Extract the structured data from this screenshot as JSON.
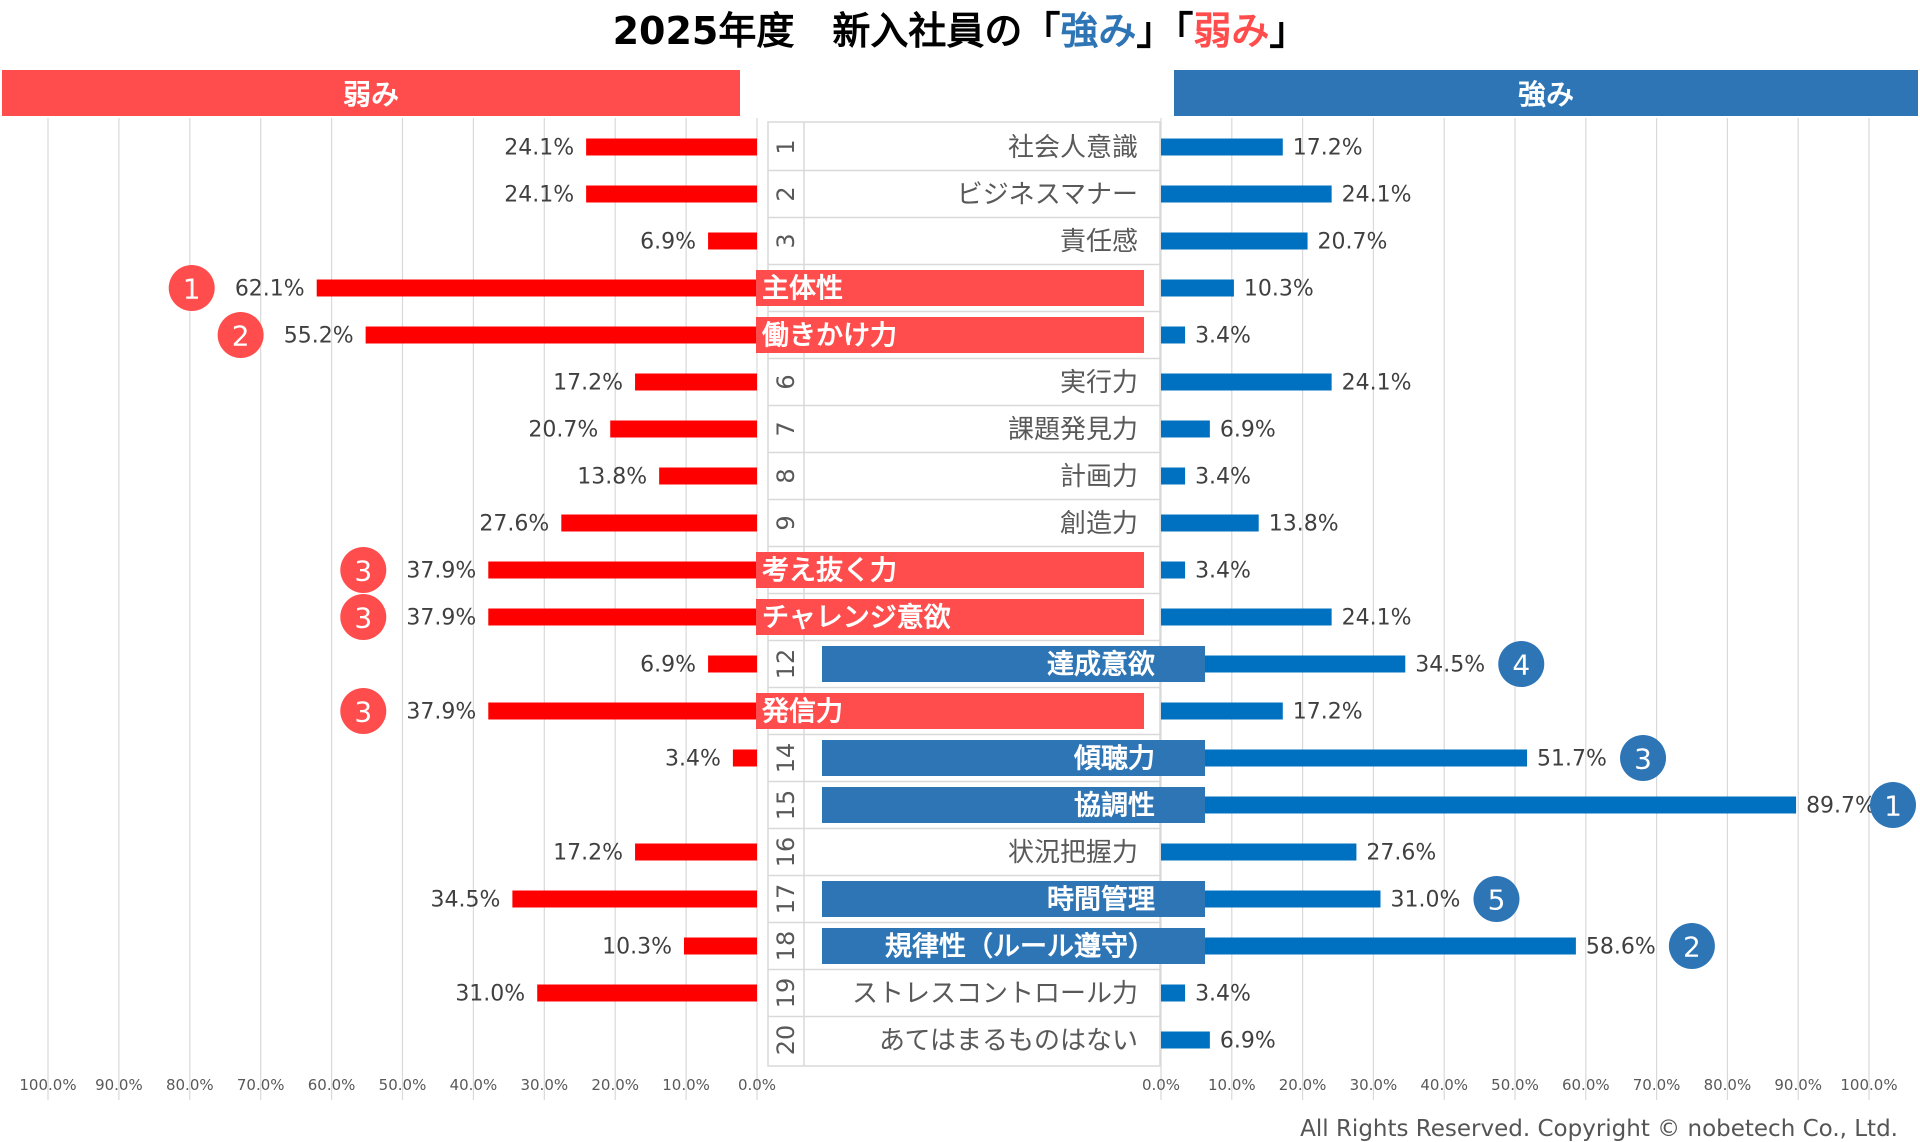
{
  "title": {
    "prefix": "2025年度　新入社員の",
    "open1": "「",
    "strong": "強み",
    "close1": "」",
    "open2": "「",
    "weak": "弱み",
    "close2": "」"
  },
  "headers": {
    "left": "弱み",
    "right": "強み"
  },
  "copyright": "All Rights Reserved. Copyright © nobetech Co., Ltd.",
  "colors": {
    "weak_bar": "#ff0000",
    "weak_header": "#ff4d4d",
    "strong_bar": "#0070c0",
    "strong_header": "#2e75b6",
    "title_strong": "#2e75b6",
    "title_weak": "#ff4d4d"
  },
  "chart_data": {
    "type": "bar",
    "orientation": "horizontal-butterfly",
    "categories": [
      "社会人意識",
      "ビジネスマナー",
      "責任感",
      "主体性",
      "働きかけ力",
      "実行力",
      "課題発見力",
      "計画力",
      "創造力",
      "考え抜く力",
      "チャレンジ意欲",
      "達成意欲",
      "発信力",
      "傾聴力",
      "協調性",
      "状況把握力",
      "時間管理",
      "規律性（ルール遵守）",
      "ストレスコントロール力",
      "あてはまるものはない"
    ],
    "row_numbers": [
      "1",
      "2",
      "3",
      "",
      "",
      "6",
      "7",
      "8",
      "9",
      "",
      "",
      "12",
      "",
      "14",
      "15",
      "16",
      "17",
      "18",
      "19",
      "20"
    ],
    "series": [
      {
        "name": "弱み",
        "values": [
          24.1,
          24.1,
          6.9,
          62.1,
          55.2,
          17.2,
          20.7,
          13.8,
          27.6,
          37.9,
          37.9,
          6.9,
          37.9,
          3.4,
          0,
          17.2,
          34.5,
          10.3,
          31.0,
          0
        ],
        "labels": [
          "24.1%",
          "24.1%",
          "6.9%",
          "62.1%",
          "55.2%",
          "17.2%",
          "20.7%",
          "13.8%",
          "27.6%",
          "37.9%",
          "37.9%",
          "6.9%",
          "37.9%",
          "3.4%",
          "",
          "17.2%",
          "34.5%",
          "10.3%",
          "31.0%",
          ""
        ]
      },
      {
        "name": "強み",
        "values": [
          17.2,
          24.1,
          20.7,
          10.3,
          3.4,
          24.1,
          6.9,
          3.4,
          13.8,
          3.4,
          24.1,
          34.5,
          17.2,
          51.7,
          89.7,
          27.6,
          31.0,
          58.6,
          3.4,
          6.9
        ],
        "labels": [
          "17.2%",
          "24.1%",
          "20.7%",
          "10.3%",
          "3.4%",
          "24.1%",
          "6.9%",
          "3.4%",
          "13.8%",
          "3.4%",
          "24.1%",
          "34.5%",
          "17.2%",
          "51.7%",
          "89.7%",
          "27.6%",
          "31.0%",
          "58.6%",
          "3.4%",
          "6.9%"
        ]
      }
    ],
    "highlights": {
      "weak": {
        "rows": [
          3,
          4,
          9,
          10,
          12
        ],
        "ranks": [
          "1",
          "2",
          "3",
          "3",
          "3"
        ]
      },
      "strong": {
        "rows": [
          11,
          13,
          14,
          16,
          17
        ],
        "ranks": [
          "4",
          "3",
          "1",
          "5",
          "2"
        ]
      }
    },
    "left_ticks": [
      "100.0%",
      "90.0%",
      "80.0%",
      "70.0%",
      "60.0%",
      "50.0%",
      "40.0%",
      "30.0%",
      "20.0%",
      "10.0%",
      "0.0%"
    ],
    "right_ticks": [
      "0.0%",
      "10.0%",
      "20.0%",
      "30.0%",
      "40.0%",
      "50.0%",
      "60.0%",
      "70.0%",
      "80.0%",
      "90.0%",
      "100.0%"
    ],
    "xlim": [
      0,
      100
    ],
    "grid": true
  }
}
